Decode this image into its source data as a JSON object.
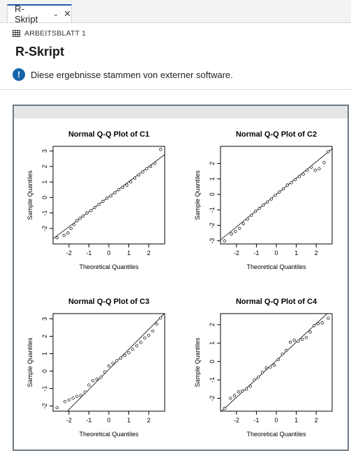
{
  "tab": {
    "label": "R-Skript"
  },
  "breadcrumb": {
    "label": "ARBEITSBLATT 1"
  },
  "page": {
    "title": "R-Skript"
  },
  "notice": {
    "text": "Diese ergebnisse stammen von externer software."
  },
  "colors": {
    "accent": "#1f5fa8",
    "info": "#1565a8",
    "frame": "#6f7a84"
  },
  "chart_data": [
    {
      "type": "scatter",
      "title": "Normal Q-Q Plot of C1",
      "xlabel": "Theoretical Quantiles",
      "ylabel": "Sample Quantiles",
      "xlim": [
        -2.8,
        2.8
      ],
      "ylim": [
        -3,
        3.3
      ],
      "xticks": [
        -2,
        -1,
        0,
        1,
        2
      ],
      "yticks": [
        -2,
        -1,
        0,
        1,
        2,
        3
      ],
      "line": {
        "intercept": 0.05,
        "slope": 0.97
      },
      "points": [
        [
          -2.6,
          -2.6
        ],
        [
          -2.25,
          -2.45
        ],
        [
          -2.05,
          -2.3
        ],
        [
          -1.9,
          -2.0
        ],
        [
          -1.75,
          -1.75
        ],
        [
          -1.6,
          -1.5
        ],
        [
          -1.45,
          -1.35
        ],
        [
          -1.3,
          -1.2
        ],
        [
          -1.1,
          -1.0
        ],
        [
          -0.9,
          -0.85
        ],
        [
          -0.7,
          -0.65
        ],
        [
          -0.5,
          -0.45
        ],
        [
          -0.3,
          -0.25
        ],
        [
          -0.1,
          -0.05
        ],
        [
          0.1,
          0.1
        ],
        [
          0.3,
          0.3
        ],
        [
          0.5,
          0.5
        ],
        [
          0.7,
          0.65
        ],
        [
          0.9,
          0.8
        ],
        [
          1.1,
          1.0
        ],
        [
          1.3,
          1.25
        ],
        [
          1.5,
          1.45
        ],
        [
          1.7,
          1.65
        ],
        [
          1.9,
          1.85
        ],
        [
          2.1,
          2.0
        ],
        [
          2.3,
          2.2
        ],
        [
          2.6,
          3.1
        ]
      ]
    },
    {
      "type": "scatter",
      "title": "Normal Q-Q Plot of C2",
      "xlabel": "Theoretical Quantiles",
      "ylabel": "Sample Quantiles",
      "xlim": [
        -2.8,
        2.8
      ],
      "ylim": [
        -3.2,
        3.1
      ],
      "xticks": [
        -2,
        -1,
        0,
        1,
        2
      ],
      "yticks": [
        -3,
        -2,
        -1,
        0,
        1,
        2
      ],
      "line": {
        "intercept": 0.0,
        "slope": 1.05
      },
      "points": [
        [
          -2.6,
          -3.0
        ],
        [
          -2.25,
          -2.55
        ],
        [
          -2.05,
          -2.4
        ],
        [
          -1.85,
          -2.2
        ],
        [
          -1.65,
          -1.9
        ],
        [
          -1.45,
          -1.6
        ],
        [
          -1.25,
          -1.35
        ],
        [
          -1.05,
          -1.1
        ],
        [
          -0.85,
          -0.9
        ],
        [
          -0.65,
          -0.7
        ],
        [
          -0.45,
          -0.5
        ],
        [
          -0.25,
          -0.3
        ],
        [
          -0.05,
          -0.05
        ],
        [
          0.15,
          0.15
        ],
        [
          0.35,
          0.35
        ],
        [
          0.55,
          0.6
        ],
        [
          0.75,
          0.75
        ],
        [
          0.95,
          0.95
        ],
        [
          1.15,
          1.15
        ],
        [
          1.35,
          1.3
        ],
        [
          1.55,
          1.55
        ],
        [
          1.75,
          1.75
        ],
        [
          1.95,
          1.55
        ],
        [
          2.15,
          1.65
        ],
        [
          2.4,
          2.05
        ],
        [
          2.6,
          2.75
        ]
      ]
    },
    {
      "type": "scatter",
      "title": "Normal Q-Q Plot of C3",
      "xlabel": "Theoretical Quantiles",
      "ylabel": "Sample Quantiles",
      "xlim": [
        -2.8,
        2.8
      ],
      "ylim": [
        -2.3,
        3.3
      ],
      "xticks": [
        -2,
        -1,
        0,
        1,
        2
      ],
      "yticks": [
        -2,
        -1,
        0,
        1,
        2,
        3
      ],
      "line": {
        "intercept": 0.1,
        "slope": 1.15
      },
      "points": [
        [
          -2.6,
          -2.1
        ],
        [
          -2.2,
          -1.75
        ],
        [
          -2.0,
          -1.65
        ],
        [
          -1.8,
          -1.55
        ],
        [
          -1.6,
          -1.45
        ],
        [
          -1.4,
          -1.4
        ],
        [
          -1.2,
          -1.2
        ],
        [
          -1.0,
          -0.8
        ],
        [
          -0.8,
          -0.55
        ],
        [
          -0.6,
          -0.45
        ],
        [
          -0.4,
          -0.35
        ],
        [
          -0.2,
          -0.05
        ],
        [
          0.0,
          0.3
        ],
        [
          0.2,
          0.45
        ],
        [
          0.4,
          0.6
        ],
        [
          0.6,
          0.75
        ],
        [
          0.8,
          0.9
        ],
        [
          1.0,
          1.05
        ],
        [
          1.2,
          1.25
        ],
        [
          1.4,
          1.45
        ],
        [
          1.6,
          1.65
        ],
        [
          1.8,
          1.9
        ],
        [
          2.0,
          2.05
        ],
        [
          2.2,
          2.3
        ],
        [
          2.4,
          2.7
        ],
        [
          2.6,
          3.05
        ]
      ]
    },
    {
      "type": "scatter",
      "title": "Normal Q-Q Plot of C4",
      "xlabel": "Theoretical Quantiles",
      "ylabel": "Sample Quantiles",
      "xlim": [
        -2.8,
        2.8
      ],
      "ylim": [
        -2.7,
        2.6
      ],
      "xticks": [
        -2,
        -1,
        0,
        1,
        2
      ],
      "yticks": [
        -2,
        -1,
        0,
        1,
        2
      ],
      "line": {
        "intercept": 0.05,
        "slope": 1.0
      },
      "points": [
        [
          -2.6,
          -2.55
        ],
        [
          -2.3,
          -2.0
        ],
        [
          -2.1,
          -1.85
        ],
        [
          -1.9,
          -1.65
        ],
        [
          -1.7,
          -1.6
        ],
        [
          -1.5,
          -1.5
        ],
        [
          -1.3,
          -1.35
        ],
        [
          -1.1,
          -1.0
        ],
        [
          -0.9,
          -0.85
        ],
        [
          -0.7,
          -0.6
        ],
        [
          -0.5,
          -0.35
        ],
        [
          -0.3,
          -0.3
        ],
        [
          -0.1,
          -0.2
        ],
        [
          0.1,
          0.1
        ],
        [
          0.3,
          0.4
        ],
        [
          0.5,
          0.6
        ],
        [
          0.7,
          1.05
        ],
        [
          0.9,
          1.15
        ],
        [
          1.1,
          1.1
        ],
        [
          1.3,
          1.2
        ],
        [
          1.5,
          1.3
        ],
        [
          1.7,
          1.6
        ],
        [
          1.9,
          1.95
        ],
        [
          2.1,
          2.05
        ],
        [
          2.3,
          2.1
        ],
        [
          2.6,
          2.35
        ]
      ]
    }
  ]
}
